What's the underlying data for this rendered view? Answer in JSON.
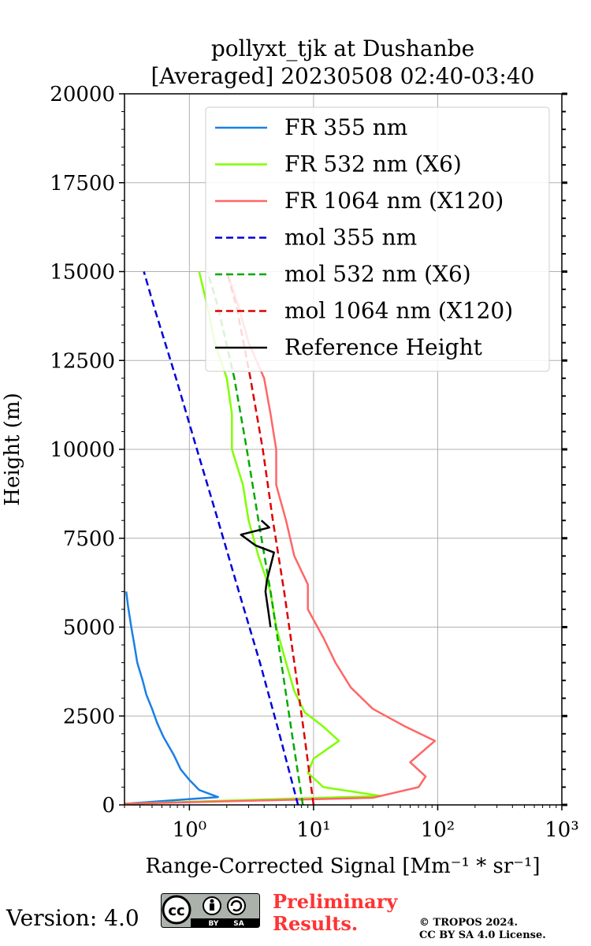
{
  "chart_data": {
    "type": "line",
    "title_line1": "pollyxt_tjk at Dushanbe",
    "title_line2": "[Averaged] 20230508 02:40-03:40",
    "xlabel": "Range-Corrected Signal [Mm⁻¹ * sr⁻¹]",
    "ylabel": "Height (m)",
    "xscale": "log",
    "xlim": [
      0.3,
      1000
    ],
    "ylim": [
      0,
      20000
    ],
    "grid": true,
    "legend_position": "top-right",
    "x_ticks": [
      1,
      10,
      100,
      1000
    ],
    "x_tick_labels": [
      "10⁰",
      "10¹",
      "10²",
      "10³"
    ],
    "y_ticks": [
      0,
      2500,
      5000,
      7500,
      10000,
      12500,
      15000,
      17500,
      20000
    ],
    "y_tick_labels": [
      "0",
      "2500",
      "5000",
      "7500",
      "10000",
      "12500",
      "15000",
      "17500",
      "20000"
    ],
    "series": [
      {
        "name": "FR 355 nm",
        "color": "#1a80e6",
        "style": "solid",
        "points": [
          [
            0.3,
            30
          ],
          [
            1.7,
            220
          ],
          [
            1.2,
            420
          ],
          [
            1.0,
            700
          ],
          [
            0.85,
            1000
          ],
          [
            0.75,
            1400
          ],
          [
            0.62,
            1900
          ],
          [
            0.55,
            2300
          ],
          [
            0.5,
            2700
          ],
          [
            0.45,
            3100
          ],
          [
            0.42,
            3500
          ],
          [
            0.38,
            4000
          ],
          [
            0.36,
            4500
          ],
          [
            0.34,
            5000
          ],
          [
            0.32,
            5600
          ],
          [
            0.31,
            6000
          ]
        ]
      },
      {
        "name": "FR 532 nm (X6)",
        "color": "#80ff00",
        "style": "solid",
        "points": [
          [
            0.3,
            30
          ],
          [
            35,
            250
          ],
          [
            12,
            500
          ],
          [
            9,
            900
          ],
          [
            10,
            1300
          ],
          [
            16,
            1800
          ],
          [
            12,
            2200
          ],
          [
            8.5,
            2600
          ],
          [
            7,
            3200
          ],
          [
            6,
            4000
          ],
          [
            5,
            5000
          ],
          [
            4.5,
            6000
          ],
          [
            3.6,
            7000
          ],
          [
            3,
            8000
          ],
          [
            2.7,
            9000
          ],
          [
            2.2,
            10000
          ],
          [
            2.2,
            11000
          ],
          [
            2,
            12000
          ],
          [
            1.6,
            13000
          ],
          [
            1.4,
            14000
          ],
          [
            1.2,
            15000
          ]
        ]
      },
      {
        "name": "FR 1064 nm (X120)",
        "color": "#ff6666",
        "style": "solid",
        "points": [
          [
            0.3,
            30
          ],
          [
            30,
            200
          ],
          [
            70,
            500
          ],
          [
            80,
            800
          ],
          [
            60,
            1200
          ],
          [
            95,
            1800
          ],
          [
            55,
            2200
          ],
          [
            30,
            2700
          ],
          [
            20,
            3300
          ],
          [
            15,
            4000
          ],
          [
            12,
            4700
          ],
          [
            9,
            5500
          ],
          [
            9,
            6200
          ],
          [
            7,
            7000
          ],
          [
            6,
            8000
          ],
          [
            5,
            9000
          ],
          [
            5,
            10000
          ],
          [
            4.5,
            11000
          ],
          [
            4,
            12000
          ],
          [
            3,
            13000
          ],
          [
            2.5,
            14000
          ],
          [
            2,
            15000
          ]
        ]
      },
      {
        "name": "mol 355 nm",
        "color": "#0000dd",
        "style": "dashed",
        "points": [
          [
            7.5,
            0
          ],
          [
            5.3,
            2000
          ],
          [
            3.7,
            4000
          ],
          [
            2.5,
            6000
          ],
          [
            1.7,
            8000
          ],
          [
            1.15,
            10000
          ],
          [
            0.78,
            12000
          ],
          [
            0.52,
            14000
          ],
          [
            0.43,
            15000
          ]
        ]
      },
      {
        "name": "mol 532 nm (X6)",
        "color": "#00aa00",
        "style": "dashed",
        "points": [
          [
            8.2,
            0
          ],
          [
            6.7,
            2000
          ],
          [
            5.5,
            4000
          ],
          [
            4.5,
            6000
          ],
          [
            3.6,
            8000
          ],
          [
            2.9,
            10000
          ],
          [
            2.3,
            12000
          ],
          [
            1.7,
            14000
          ],
          [
            1.4,
            15000
          ]
        ]
      },
      {
        "name": "mol 1064 nm (X120)",
        "color": "#dd0000",
        "style": "dashed",
        "points": [
          [
            10,
            0
          ],
          [
            8.4,
            2000
          ],
          [
            7,
            4000
          ],
          [
            5.8,
            6000
          ],
          [
            4.7,
            8000
          ],
          [
            3.9,
            10000
          ],
          [
            3.1,
            12000
          ],
          [
            2.4,
            14000
          ],
          [
            2.0,
            15000
          ]
        ]
      },
      {
        "name": "Reference Height",
        "color": "#000000",
        "style": "solid",
        "points": [
          [
            4.5,
            5000
          ],
          [
            4.3,
            5500
          ],
          [
            4.1,
            6000
          ],
          [
            4.2,
            6300
          ],
          [
            4.8,
            7100
          ],
          [
            3.4,
            7300
          ],
          [
            2.6,
            7600
          ],
          [
            4.4,
            7800
          ],
          [
            3.8,
            8000
          ]
        ]
      }
    ]
  },
  "footer": {
    "version": "Version: 4.0",
    "prelim_line1": "Preliminary",
    "prelim_line2": "Results.",
    "copyright_line1": "© TROPOS 2024.",
    "copyright_line2": "CC BY SA 4.0 License.",
    "cc_label": "cc",
    "by_label": "BY",
    "sa_label": "SA"
  }
}
